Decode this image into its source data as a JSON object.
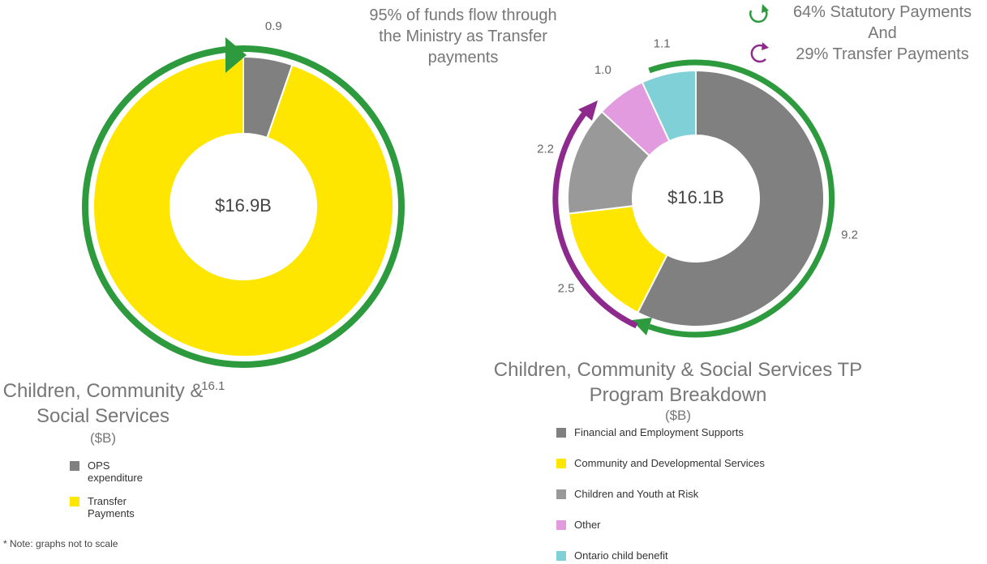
{
  "chart_data": [
    {
      "type": "donut",
      "title": "Children, Community & Social Services",
      "subtitle": "($B)",
      "center_label": "$16.9B",
      "categories": [
        "OPS expenditure",
        "Transfer Payments"
      ],
      "values": [
        0.9,
        16.1
      ],
      "colors": [
        "#808080",
        "#ffe600"
      ],
      "legend": "bottom-left",
      "annotations": [
        "95% of funds flow through the Ministry as Transfer payments"
      ]
    },
    {
      "type": "donut",
      "title": "Children, Community & Social Services TP Program Breakdown",
      "subtitle": "($B)",
      "center_label": "$16.1B",
      "categories": [
        "Financial and Employment Supports",
        "Community and Developmental Services",
        "Children and Youth at Risk",
        "Other",
        "Ontario child benefit"
      ],
      "values": [
        9.2,
        2.5,
        2.2,
        1.0,
        1.1
      ],
      "value_labels": [
        "9.2",
        "2.5",
        "2.2",
        "1.0",
        "1.1"
      ],
      "colors": [
        "#808080",
        "#ffe600",
        "#999999",
        "#e39be0",
        "#80d0d8"
      ],
      "legend": "bottom",
      "annotations": [
        "64% Statutory Payments And",
        "29% Transfer Payments"
      ]
    }
  ],
  "note": "* Note: graphs not to scale"
}
